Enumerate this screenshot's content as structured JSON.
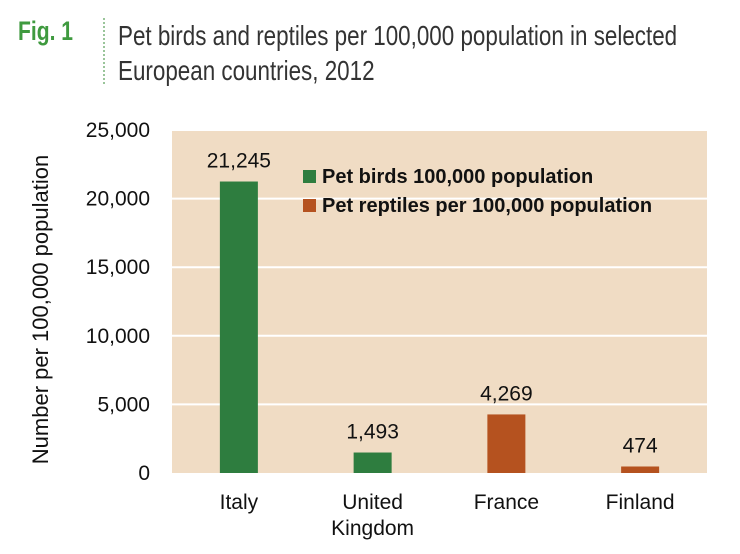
{
  "figure": {
    "label": "Fig. 1",
    "title": "Pet birds and reptiles per 100,000 population in selected European countries, 2012"
  },
  "colors": {
    "plot_background": "#f0dcc4",
    "gridline": "#ffffff",
    "birds": "#2e7d3f",
    "reptiles": "#b5521f",
    "fig_label": "#3f9a3f"
  },
  "chart_data": {
    "type": "bar",
    "categories": [
      "Italy",
      "United Kingdom",
      "France",
      "Finland"
    ],
    "category_lines": [
      [
        "Italy"
      ],
      [
        "United",
        "Kingdom"
      ],
      [
        "France"
      ],
      [
        "Finland"
      ]
    ],
    "series": [
      {
        "name": "Pet birds 100,000 population",
        "values": [
          21245,
          1493,
          null,
          null
        ]
      },
      {
        "name": "Pet reptiles per 100,000 population",
        "values": [
          null,
          null,
          4269,
          474
        ]
      }
    ],
    "data_labels": [
      "21,245",
      "1,493",
      "4,269",
      "474"
    ],
    "ylabel": "Number per 100,000 population",
    "xlabel": "",
    "ylim": [
      0,
      25000
    ],
    "yticks": [
      0,
      5000,
      10000,
      15000,
      20000,
      25000
    ],
    "ytick_labels": [
      "0",
      "5,000",
      "10,000",
      "15,000",
      "20,000",
      "25,000"
    ],
    "grid": true,
    "legend_position": "top-right"
  }
}
